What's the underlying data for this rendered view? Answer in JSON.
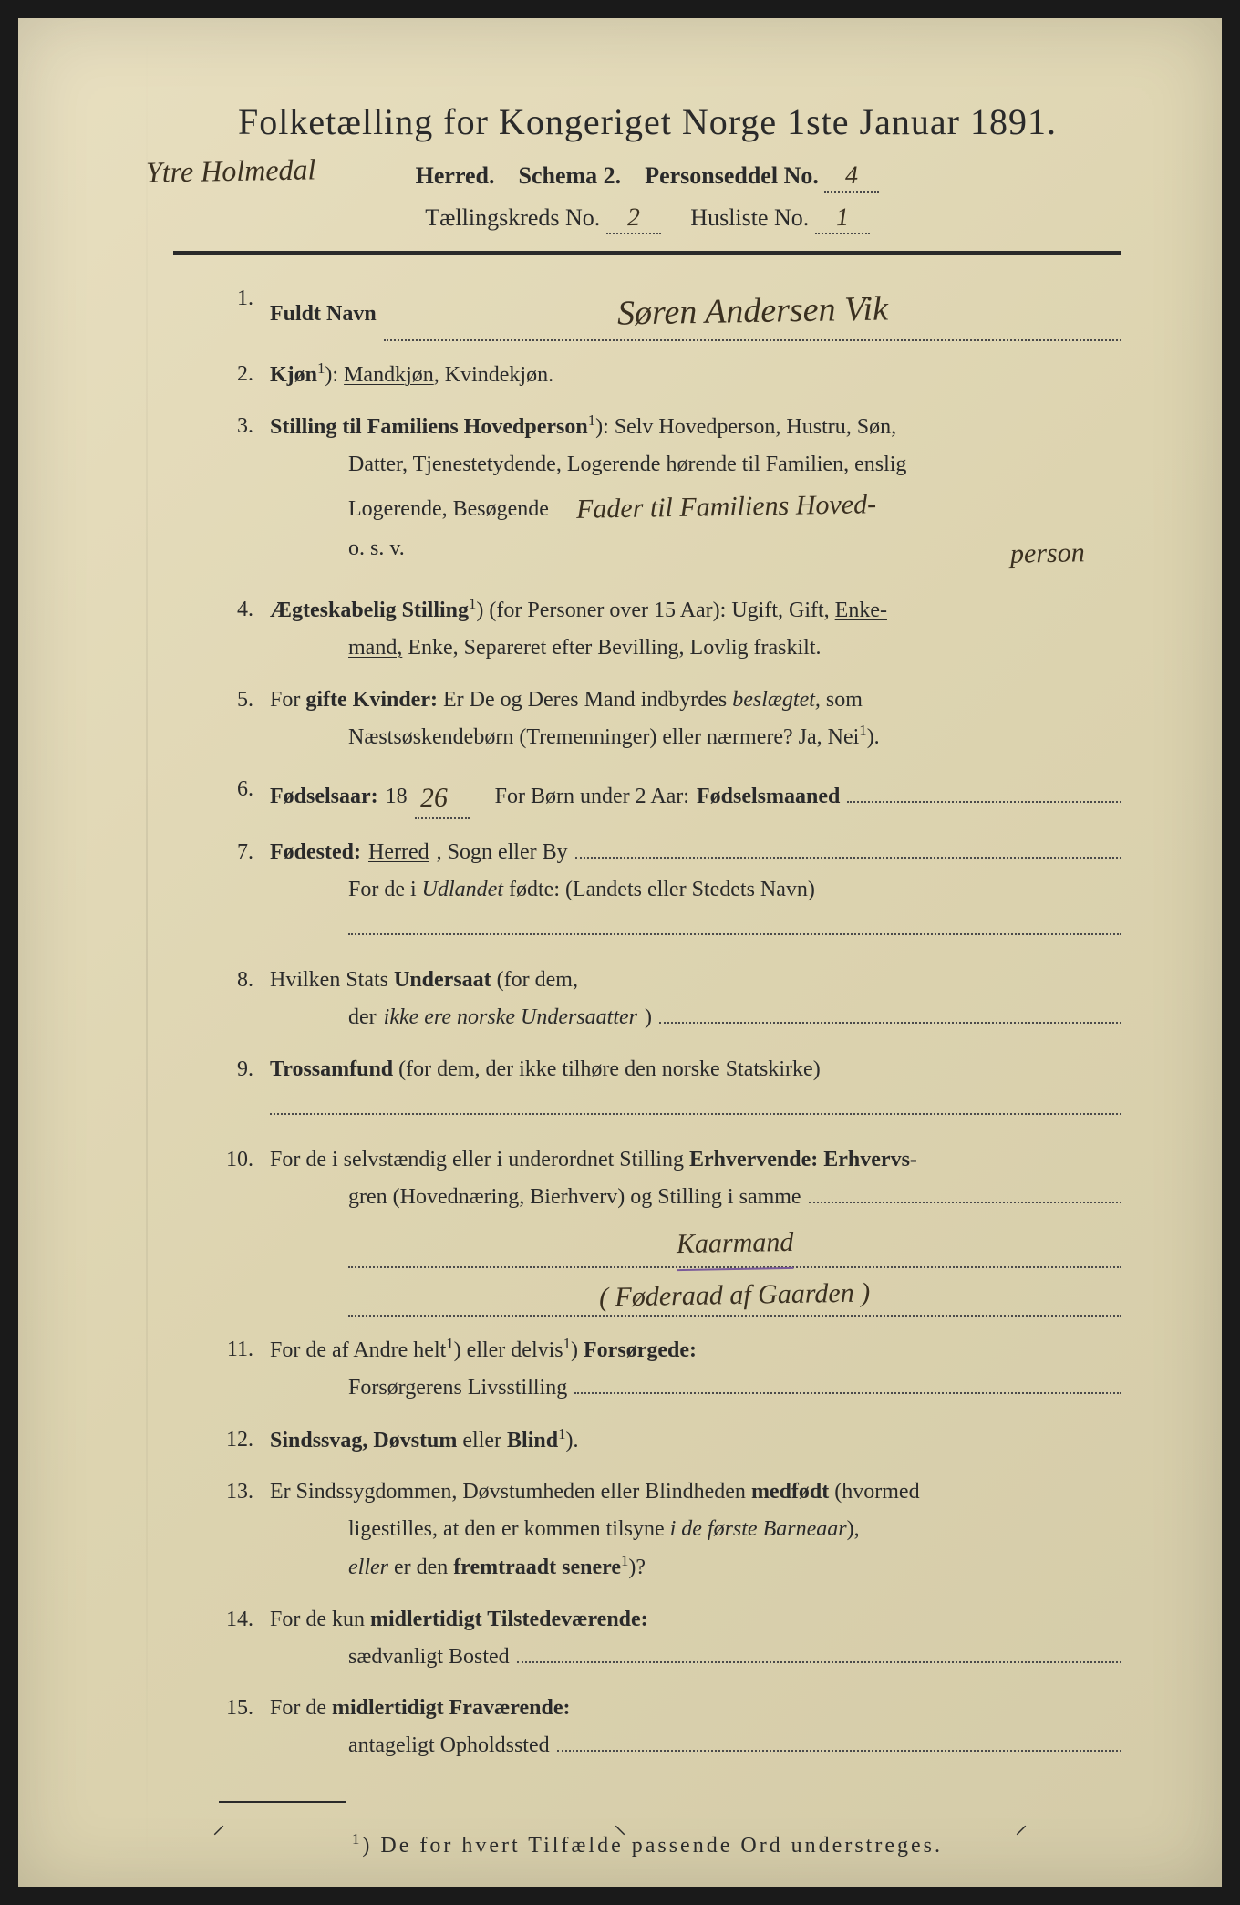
{
  "document": {
    "background_color": "#e8dfc0",
    "text_color": "#2a2a2a",
    "handwriting_color": "#3a3020",
    "purple_accent": "#7a5a9a"
  },
  "header": {
    "title": "Folketælling for Kongeriget Norge 1ste Januar 1891.",
    "herred_handwritten": "Ytre Holmedal",
    "herred_label": "Herred.",
    "schema_label": "Schema 2.",
    "personseddel_label": "Personseddel No.",
    "personseddel_no": "4",
    "tallingskreds_label": "Tællingskreds No.",
    "tallingskreds_no": "2",
    "husliste_label": "Husliste No.",
    "husliste_no": "1"
  },
  "items": {
    "1": {
      "num": "1.",
      "label": "Fuldt Navn",
      "value": "Søren Andersen Vik"
    },
    "2": {
      "num": "2.",
      "label": "Kjøn",
      "sup": "1",
      "text": "): Mandkjøn, Kvindekjøn.",
      "underlined": "Mandkjøn"
    },
    "3": {
      "num": "3.",
      "label": "Stilling til Familiens Hovedperson",
      "sup": "1",
      "text1": "): Selv Hovedperson, Hustru, Søn,",
      "text2": "Datter, Tjenestetydende, Logerende hørende til Familien, enslig",
      "text3": "Logerende, Besøgende",
      "handwritten": "Fader til Familiens Hoved-",
      "handwritten2": "person",
      "text4": "o. s. v."
    },
    "4": {
      "num": "4.",
      "label": "Ægteskabelig Stilling",
      "sup": "1",
      "text1": ") (for Personer over 15 Aar): Ugift, Gift, ",
      "underlined": "Enke-",
      "text2": "mand,",
      "text3": " Enke, Separeret efter Bevilling, Lovlig fraskilt."
    },
    "5": {
      "num": "5.",
      "text1": "For ",
      "label": "gifte Kvinder:",
      "text2": " Er De og Deres Mand indbyrdes ",
      "italic": "beslægtet,",
      "text3": " som",
      "text4": "Næstsøskendebørn (Tremenninger) eller nærmere?  Ja, Nei",
      "sup": "1",
      "text5": ")."
    },
    "6": {
      "num": "6.",
      "label": "Fødselsaar:",
      "prefix": "18",
      "year": "26",
      "text2": "For Børn under 2 Aar: ",
      "label2": "Fødselsmaaned"
    },
    "7": {
      "num": "7.",
      "label": "Fødested:",
      "underlined": "Herred",
      "text1": ", Sogn eller By",
      "text2": "For de i ",
      "italic": "Udlandet",
      "text3": " fødte: (Landets eller Stedets Navn)"
    },
    "8": {
      "num": "8.",
      "text1": "Hvilken Stats ",
      "label": "Undersaat",
      "text2": " (for dem,",
      "text3": "der ",
      "italic": "ikke ere norske Undersaatter",
      "text4": ")"
    },
    "9": {
      "num": "9.",
      "label": "Trossamfund",
      "text": "  (for  dem,  der  ikke  tilhøre  den  norske  Statskirke)"
    },
    "10": {
      "num": "10.",
      "text1": "For de i selvstændig eller i underordnet Stilling ",
      "label": "Erhvervende: Erhvervs-",
      "text2": "gren (Hovednæring, Bierhverv) og Stilling i samme",
      "handwritten1": "Kaarmand",
      "handwritten2": "( Føderaad af Gaarden )"
    },
    "11": {
      "num": "11.",
      "text1": "For de af Andre helt",
      "sup1": "1",
      "text2": ") eller delvis",
      "sup2": "1",
      "text3": ") ",
      "label": "Forsørgede:",
      "text4": "Forsørgerens Livsstilling"
    },
    "12": {
      "num": "12.",
      "label": "Sindssvag, Døvstum",
      "text": " eller ",
      "label2": "Blind",
      "sup": "1",
      "text2": ")."
    },
    "13": {
      "num": "13.",
      "text1": "Er Sindssygdommen, Døvstumheden eller Blindheden ",
      "label": "medfødt",
      "text2": " (hvormed",
      "text3": "ligestilles, at den er kommen tilsyne ",
      "italic": "i de første Barneaar",
      "text4": "),",
      "italic2": "eller",
      "text5": " er den ",
      "label2": "fremtraadt senere",
      "sup": "1",
      "text6": ")?"
    },
    "14": {
      "num": "14.",
      "text1": "For de kun ",
      "label": "midlertidigt Tilstedeværende:",
      "text2": "sædvanligt Bosted"
    },
    "15": {
      "num": "15.",
      "text1": "For de ",
      "label": "midlertidigt Fraværende:",
      "text2": "antageligt Opholdssted"
    }
  },
  "footnote": {
    "sup": "1",
    "text": ") De for hvert Tilfælde passende Ord understreges."
  }
}
